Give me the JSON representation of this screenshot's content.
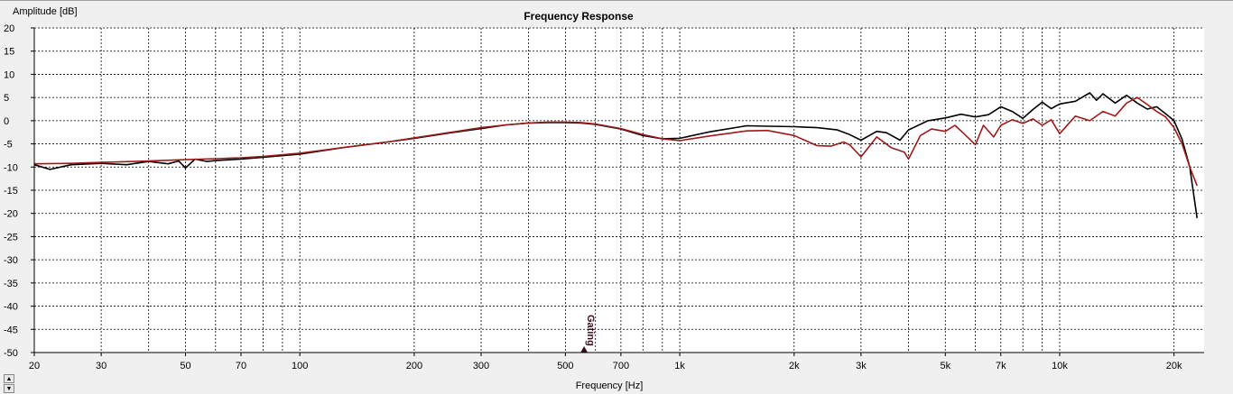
{
  "chart_data": {
    "type": "line",
    "title": "Frequency Response",
    "xlabel": "Frequency [Hz]",
    "ylabel": "Amplitude [dB]",
    "xscale": "log",
    "xlim": [
      20,
      24000
    ],
    "ylim": [
      -50,
      20
    ],
    "grid": true,
    "y_ticks": [
      20,
      15,
      10,
      5,
      0,
      -5,
      -10,
      -15,
      -20,
      -25,
      -30,
      -35,
      -40,
      -45,
      -50
    ],
    "y_tick_labels": [
      "20",
      "15",
      "10",
      "5",
      "0",
      "-5",
      "-10",
      "-15",
      "-20",
      "-25",
      "-30",
      "-35",
      "-40",
      "-45",
      "-50"
    ],
    "x_ticks": [
      20,
      30,
      50,
      70,
      100,
      200,
      300,
      500,
      700,
      1000,
      2000,
      3000,
      5000,
      7000,
      10000,
      20000
    ],
    "x_tick_labels": [
      "20",
      "30",
      "50",
      "70",
      "100",
      "200",
      "300",
      "500",
      "700",
      "1k",
      "2k",
      "3k",
      "5k",
      "7k",
      "10k",
      "20k"
    ],
    "marker": {
      "label": "Gating",
      "x": 560
    },
    "series": [
      {
        "color": "#000000",
        "x": [
          20,
          22,
          25,
          30,
          35,
          40,
          45,
          48,
          50,
          53,
          57,
          60,
          70,
          80,
          100,
          130,
          170,
          200,
          250,
          300,
          350,
          400,
          450,
          500,
          550,
          600,
          700,
          800,
          900,
          1000,
          1200,
          1500,
          1700,
          2000,
          2300,
          2600,
          2800,
          3000,
          3300,
          3500,
          3800,
          4000,
          4500,
          5000,
          5500,
          6000,
          6500,
          7000,
          7500,
          8000,
          8500,
          9000,
          9500,
          10000,
          11000,
          12000,
          12500,
          13000,
          14000,
          15000,
          16000,
          17000,
          18000,
          19000,
          20000,
          21000,
          22000,
          23000
        ],
        "y": [
          -9.5,
          -10.5,
          -9.5,
          -9.2,
          -9.5,
          -8.8,
          -9.3,
          -8.7,
          -10.2,
          -8.3,
          -8.8,
          -8.6,
          -8.3,
          -7.9,
          -7.2,
          -5.8,
          -4.6,
          -3.8,
          -2.6,
          -1.7,
          -0.9,
          -0.5,
          -0.4,
          -0.4,
          -0.5,
          -0.8,
          -1.8,
          -3.2,
          -3.9,
          -3.8,
          -2.4,
          -1.1,
          -1.2,
          -1.3,
          -1.5,
          -2.0,
          -3.0,
          -4.2,
          -2.3,
          -2.6,
          -4.2,
          -2.0,
          0.0,
          0.6,
          1.4,
          0.8,
          1.3,
          3.0,
          2.0,
          0.5,
          2.4,
          4.0,
          2.6,
          3.6,
          4.2,
          6.0,
          4.4,
          5.8,
          3.8,
          5.5,
          3.8,
          2.5,
          3.0,
          1.5,
          0.0,
          -4.0,
          -10.0,
          -21.0
        ]
      },
      {
        "color": "#9c1a1a",
        "x": [
          20,
          25,
          30,
          40,
          50,
          60,
          70,
          80,
          100,
          130,
          170,
          200,
          250,
          300,
          350,
          400,
          450,
          500,
          550,
          600,
          700,
          800,
          900,
          1000,
          1200,
          1500,
          1700,
          2000,
          2300,
          2500,
          2700,
          2800,
          3000,
          3300,
          3600,
          3900,
          4000,
          4300,
          4600,
          5000,
          5300,
          5600,
          6000,
          6300,
          6700,
          7000,
          7500,
          8000,
          8500,
          9000,
          9500,
          10000,
          11000,
          12000,
          13000,
          14000,
          15000,
          16000,
          17000,
          18000,
          19000,
          20000,
          21000,
          22000,
          23000
        ],
        "y": [
          -9.3,
          -9.2,
          -9.0,
          -8.7,
          -8.4,
          -8.2,
          -8.0,
          -7.7,
          -7.0,
          -5.8,
          -4.6,
          -3.7,
          -2.5,
          -1.5,
          -0.9,
          -0.5,
          -0.3,
          -0.3,
          -0.4,
          -0.7,
          -1.7,
          -3.0,
          -3.9,
          -4.3,
          -3.3,
          -2.2,
          -2.1,
          -3.2,
          -5.4,
          -5.5,
          -4.6,
          -5.2,
          -7.8,
          -3.5,
          -5.8,
          -6.8,
          -8.3,
          -3.2,
          -1.8,
          -2.3,
          -1.0,
          -2.8,
          -5.2,
          -1.0,
          -3.5,
          -1.0,
          0.2,
          -0.6,
          0.4,
          -1.0,
          0.2,
          -2.8,
          1.0,
          0.0,
          2.0,
          1.0,
          3.8,
          5.0,
          3.5,
          2.0,
          0.8,
          -1.5,
          -5.0,
          -10.0,
          -14.0
        ]
      }
    ]
  }
}
